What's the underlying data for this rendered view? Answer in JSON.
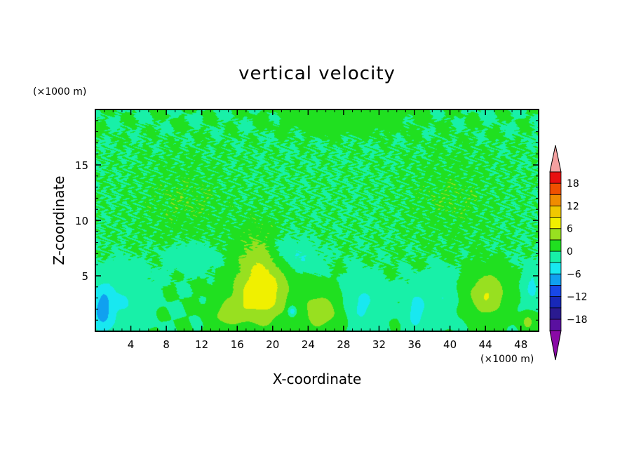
{
  "chart_data": {
    "type": "heatmap",
    "title": "vertical velocity",
    "xlabel": "X-coordinate",
    "ylabel": "Z-coordinate",
    "x_unit": "(×1000 m)",
    "y_unit": "(×1000 m)",
    "xlim": [
      0,
      50
    ],
    "ylim": [
      0,
      20
    ],
    "x_ticks": [
      4,
      8,
      12,
      16,
      20,
      24,
      28,
      32,
      36,
      40,
      44,
      48
    ],
    "y_ticks": [
      5,
      10,
      15
    ],
    "x_tick_labels": [
      "4",
      "8",
      "12",
      "16",
      "20",
      "24",
      "28",
      "32",
      "36",
      "40",
      "44",
      "48"
    ],
    "y_tick_labels": [
      "5",
      "10",
      "15"
    ],
    "colorbar": {
      "levels": [
        -21,
        -18,
        -15,
        -12,
        -9,
        -6,
        -3,
        0,
        3,
        6,
        9,
        12,
        15,
        18,
        21
      ],
      "tick_values": [
        -18,
        -12,
        -6,
        0,
        6,
        12,
        18
      ],
      "tick_labels": [
        "−18",
        "−12",
        "−6",
        "0",
        "6",
        "12",
        "18"
      ],
      "colors": [
        "#5a10a0",
        "#2a1a90",
        "#1828b8",
        "#1848e8",
        "#10a0f0",
        "#18e8f0",
        "#18f0a8",
        "#20e020",
        "#98e020",
        "#f0f000",
        "#f0c800",
        "#f08c00",
        "#f05000",
        "#e81010"
      ],
      "under_color": "#8a0aa6",
      "over_color": "#f4a0a0",
      "extend": "both"
    },
    "features": [
      {
        "x": 18.9,
        "z": 4.8,
        "w": 3.0,
        "wz": 4.0,
        "amplitude": 6.8
      },
      {
        "x": 17.8,
        "z": 2.8,
        "w": 3.2,
        "wz": 1.8,
        "amplitude": 3.0
      },
      {
        "x": 14.8,
        "z": 1.4,
        "w": 1.8,
        "wz": 1.2,
        "amplitude": 3.2
      },
      {
        "x": 25.5,
        "z": 1.8,
        "w": 2.4,
        "wz": 1.8,
        "amplitude": 4.8
      },
      {
        "x": 44.2,
        "z": 3.3,
        "w": 2.2,
        "wz": 2.0,
        "amplitude": 6.0
      },
      {
        "x": 48.8,
        "z": 0.9,
        "w": 0.8,
        "wz": 0.8,
        "amplitude": 4.0
      },
      {
        "x": 21.2,
        "z": 7.2,
        "w": 2.0,
        "wz": 1.6,
        "amplitude": -3.5
      },
      {
        "x": 11.0,
        "z": 6.8,
        "w": 2.8,
        "wz": 1.2,
        "amplitude": -2.5
      },
      {
        "x": 23.5,
        "z": 6.5,
        "w": 1.8,
        "wz": 1.2,
        "amplitude": -2.3
      },
      {
        "x": 0.8,
        "z": 1.8,
        "w": 1.2,
        "wz": 2.2,
        "amplitude": -6.5
      },
      {
        "x": 3.0,
        "z": 3.0,
        "w": 2.6,
        "wz": 2.5,
        "amplitude": -3.0
      },
      {
        "x": 30.0,
        "z": 2.4,
        "w": 2.0,
        "wz": 2.0,
        "amplitude": -3.6
      },
      {
        "x": 36.2,
        "z": 1.8,
        "w": 1.2,
        "wz": 2.0,
        "amplitude": -4.0
      },
      {
        "x": 39.0,
        "z": 2.8,
        "w": 1.6,
        "wz": 2.0,
        "amplitude": -3.0
      },
      {
        "x": 49.3,
        "z": 4.0,
        "w": 1.0,
        "wz": 1.8,
        "amplitude": -3.5
      },
      {
        "x": 22.2,
        "z": 1.8,
        "w": 0.5,
        "wz": 0.5,
        "amplitude": -7.0
      },
      {
        "x": 10.0,
        "z": 11.5,
        "w": 5.0,
        "wz": 3.5,
        "amplitude": 1.6
      },
      {
        "x": 40.0,
        "z": 12.0,
        "w": 5.0,
        "wz": 3.5,
        "amplitude": 1.5
      },
      {
        "x": 28.0,
        "z": 19.0,
        "w": 6.0,
        "wz": 1.2,
        "amplitude": 1.3
      }
    ]
  }
}
